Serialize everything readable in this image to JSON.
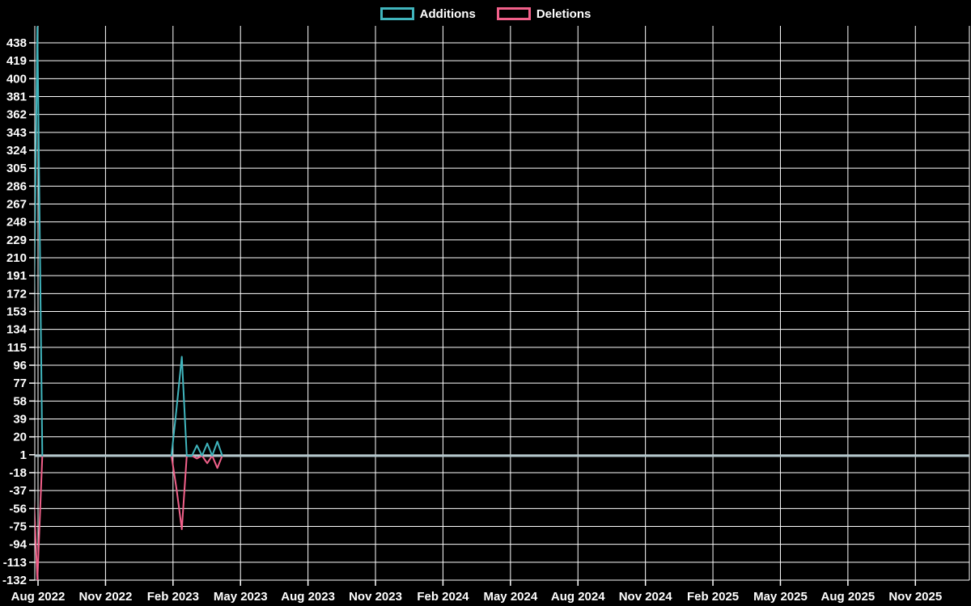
{
  "chart_data": {
    "type": "line",
    "title": "",
    "background_color": "#000000",
    "grid_color": "#ffffff",
    "text_color": "#ffffff",
    "zero_line": {
      "value": 0,
      "color": "#b3c6cb",
      "width": 3
    },
    "legend": {
      "position": "top",
      "items": [
        {
          "label": "Additions",
          "color": "#40b5bd"
        },
        {
          "label": "Deletions",
          "color": "#f2608a"
        }
      ]
    },
    "y_axis": {
      "ticks": [
        438,
        419,
        400,
        381,
        362,
        343,
        324,
        305,
        286,
        267,
        248,
        229,
        210,
        191,
        172,
        153,
        134,
        115,
        96,
        77,
        58,
        39,
        20,
        1,
        -18,
        -37,
        -56,
        -75,
        -94,
        -113,
        -132
      ],
      "range": [
        -132,
        456
      ],
      "grid": true
    },
    "x_axis": {
      "ticks": [
        {
          "label": "Aug 2022",
          "m": 0
        },
        {
          "label": "Nov 2022",
          "m": 3
        },
        {
          "label": "Feb 2023",
          "m": 6
        },
        {
          "label": "May 2023",
          "m": 9
        },
        {
          "label": "Aug 2023",
          "m": 12
        },
        {
          "label": "Nov 2023",
          "m": 15
        },
        {
          "label": "Feb 2024",
          "m": 18
        },
        {
          "label": "May 2024",
          "m": 21
        },
        {
          "label": "Aug 2024",
          "m": 24
        },
        {
          "label": "Nov 2024",
          "m": 27
        },
        {
          "label": "Feb 2025",
          "m": 30
        },
        {
          "label": "May 2025",
          "m": 33
        },
        {
          "label": "Aug 2025",
          "m": 36
        },
        {
          "label": "Nov 2025",
          "m": 39
        }
      ],
      "range_months": [
        -0.144,
        41.4
      ],
      "grid": true
    },
    "series": [
      {
        "name": "Additions",
        "color": "#40b5bd",
        "line_width": 2,
        "segments": [
          [
            {
              "week": "2022-07-24",
              "m": -0.26,
              "value": 0
            },
            {
              "week": "2022-07-31",
              "m": -0.03,
              "value": 455
            },
            {
              "week": "2022-08-07",
              "m": 0.19,
              "value": 0
            }
          ],
          [
            {
              "week": "2023-01-29",
              "m": 5.93,
              "value": 0
            },
            {
              "week": "2023-02-05",
              "m": 6.16,
              "value": 51
            },
            {
              "week": "2023-02-12",
              "m": 6.39,
              "value": 105
            },
            {
              "week": "2023-02-19",
              "m": 6.61,
              "value": 0
            },
            {
              "week": "2023-02-26",
              "m": 6.84,
              "value": 0
            },
            {
              "week": "2023-03-05",
              "m": 7.06,
              "value": 11
            },
            {
              "week": "2023-03-12",
              "m": 7.29,
              "value": 0
            },
            {
              "week": "2023-03-19",
              "m": 7.52,
              "value": 13
            },
            {
              "week": "2023-03-26",
              "m": 7.74,
              "value": 0
            },
            {
              "week": "2023-04-02",
              "m": 7.97,
              "value": 15
            },
            {
              "week": "2023-04-09",
              "m": 8.19,
              "value": 0
            }
          ]
        ]
      },
      {
        "name": "Deletions",
        "color": "#f2608a",
        "line_width": 2,
        "segments": [
          [
            {
              "week": "2022-07-24",
              "m": -0.26,
              "value": 0
            },
            {
              "week": "2022-07-31",
              "m": -0.03,
              "value": -132
            },
            {
              "week": "2022-08-07",
              "m": 0.19,
              "value": 0
            }
          ],
          [
            {
              "week": "2023-01-29",
              "m": 5.93,
              "value": 0
            },
            {
              "week": "2023-02-05",
              "m": 6.16,
              "value": -36
            },
            {
              "week": "2023-02-12",
              "m": 6.39,
              "value": -78
            },
            {
              "week": "2023-02-19",
              "m": 6.61,
              "value": 0
            },
            {
              "week": "2023-02-26",
              "m": 6.84,
              "value": 0
            },
            {
              "week": "2023-03-05",
              "m": 7.06,
              "value": -3
            },
            {
              "week": "2023-03-12",
              "m": 7.29,
              "value": 0
            },
            {
              "week": "2023-03-19",
              "m": 7.52,
              "value": -8
            },
            {
              "week": "2023-03-26",
              "m": 7.74,
              "value": 0
            },
            {
              "week": "2023-04-02",
              "m": 7.97,
              "value": -13
            },
            {
              "week": "2023-04-09",
              "m": 8.19,
              "value": 0
            }
          ]
        ]
      }
    ]
  }
}
